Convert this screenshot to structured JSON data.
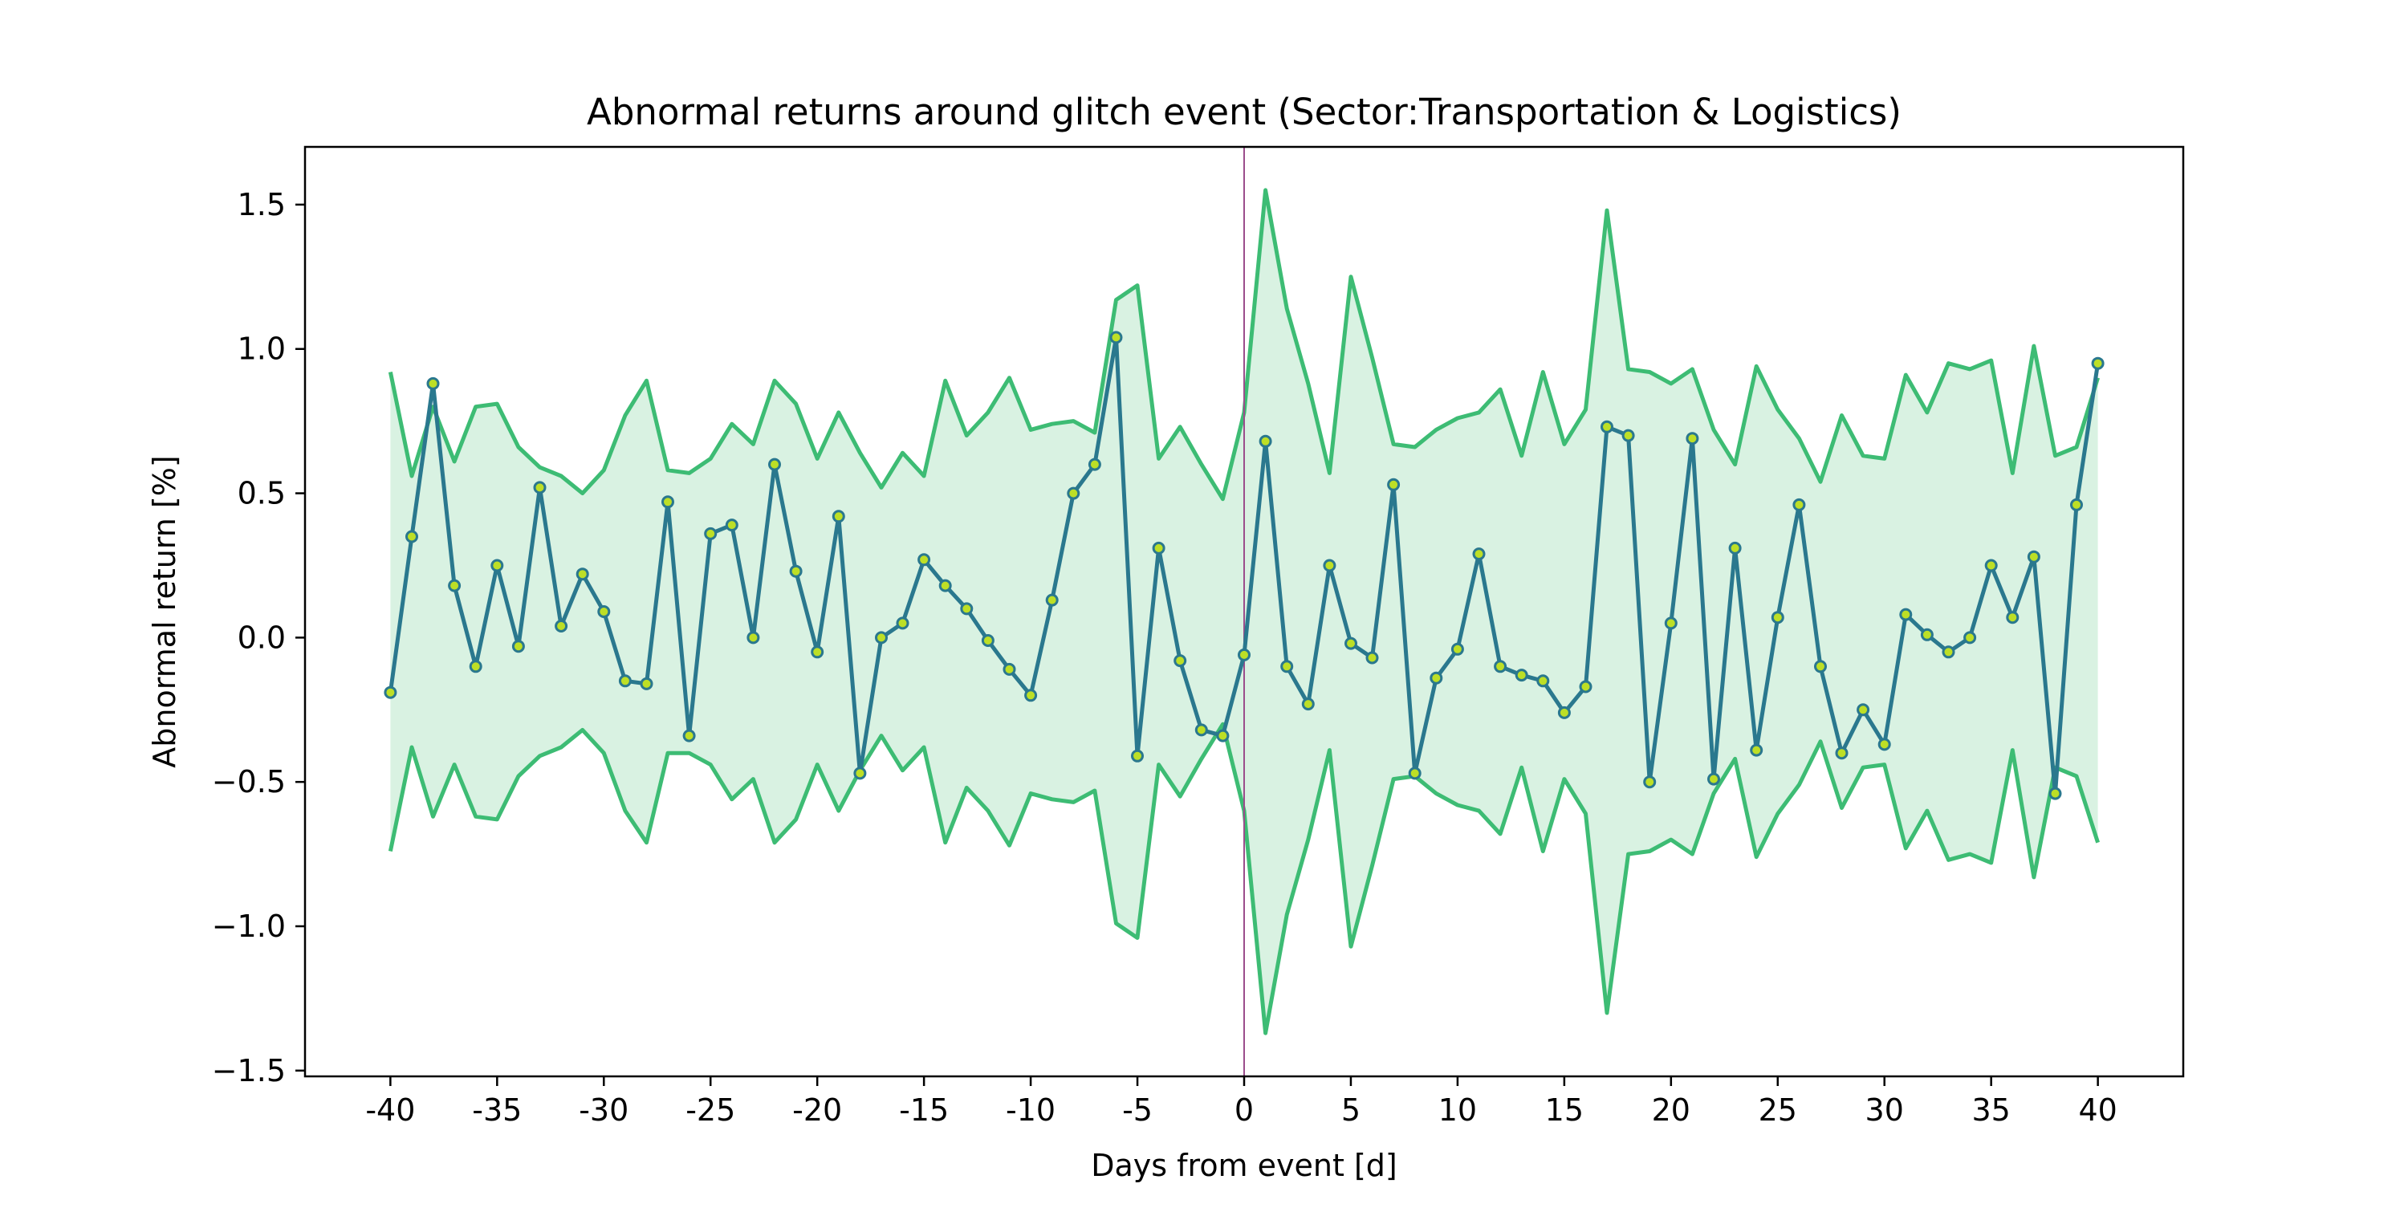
{
  "chart_data": {
    "type": "line",
    "title": "Abnormal returns around glitch event (Sector:Transportation & Logistics)",
    "xlabel": "Days from event [d]",
    "ylabel": "Abnormal return [%]",
    "xlim": [
      -44,
      44
    ],
    "ylim": [
      -1.52,
      1.7
    ],
    "xticks": [
      -40,
      -35,
      -30,
      -25,
      -20,
      -15,
      -10,
      -5,
      0,
      5,
      10,
      15,
      20,
      25,
      30,
      35,
      40
    ],
    "xtick_labels": [
      "-40",
      "-35",
      "-30",
      "-25",
      "-20",
      "-15",
      "-10",
      "-5",
      "0",
      "5",
      "10",
      "15",
      "20",
      "25",
      "30",
      "35",
      "40"
    ],
    "yticks": [
      -1.5,
      -1.0,
      -0.5,
      0.0,
      0.5,
      1.0,
      1.5
    ],
    "ytick_labels": [
      "−1.5",
      "−1.0",
      "−0.5",
      "0.0",
      "0.5",
      "1.0",
      "1.5"
    ],
    "event_day": 0,
    "grid": false,
    "colors": {
      "mean_line": "#2a788e",
      "marker_fill": "#bddf26",
      "band_line": "#3dbc74",
      "band_fill": "#d9f2e2",
      "event_line": "#9b4d8c"
    },
    "x": [
      -40,
      -39,
      -38,
      -37,
      -36,
      -35,
      -34,
      -33,
      -32,
      -31,
      -30,
      -29,
      -28,
      -27,
      -26,
      -25,
      -24,
      -23,
      -22,
      -21,
      -20,
      -19,
      -18,
      -17,
      -16,
      -15,
      -14,
      -13,
      -12,
      -11,
      -10,
      -9,
      -8,
      -7,
      -6,
      -5,
      -4,
      -3,
      -2,
      -1,
      0,
      1,
      2,
      3,
      4,
      5,
      6,
      7,
      8,
      9,
      10,
      11,
      12,
      13,
      14,
      15,
      16,
      17,
      18,
      19,
      20,
      21,
      22,
      23,
      24,
      25,
      26,
      27,
      28,
      29,
      30,
      31,
      32,
      33,
      34,
      35,
      36,
      37,
      38,
      39,
      40
    ],
    "series": [
      {
        "role": "mean",
        "values": [
          -0.19,
          0.35,
          0.88,
          0.18,
          -0.1,
          0.25,
          -0.03,
          0.52,
          0.04,
          0.22,
          0.09,
          -0.15,
          -0.16,
          0.47,
          -0.34,
          0.36,
          0.39,
          0.0,
          0.6,
          0.23,
          -0.05,
          0.42,
          -0.47,
          0.0,
          0.05,
          0.27,
          0.18,
          0.1,
          -0.01,
          -0.11,
          -0.2,
          0.13,
          0.5,
          0.6,
          1.04,
          -0.41,
          0.31,
          -0.08,
          -0.32,
          -0.34,
          -0.06,
          0.68,
          -0.1,
          -0.23,
          0.25,
          -0.02,
          -0.07,
          0.53,
          -0.47,
          -0.14,
          -0.04,
          0.29,
          -0.1,
          -0.13,
          -0.15,
          -0.26,
          -0.17,
          0.73,
          0.7,
          -0.5,
          0.05,
          0.69,
          -0.49,
          0.31,
          -0.39,
          0.07,
          0.46,
          -0.1,
          -0.4,
          -0.25,
          -0.37,
          0.08,
          0.01,
          -0.05,
          0.0,
          0.25,
          0.07,
          0.28,
          -0.54,
          0.46,
          0.95
        ]
      },
      {
        "role": "upper",
        "values": [
          0.92,
          0.56,
          0.8,
          0.61,
          0.8,
          0.81,
          0.66,
          0.59,
          0.56,
          0.5,
          0.58,
          0.77,
          0.89,
          0.58,
          0.57,
          0.62,
          0.74,
          0.67,
          0.89,
          0.81,
          0.62,
          0.78,
          0.64,
          0.52,
          0.64,
          0.56,
          0.89,
          0.7,
          0.78,
          0.9,
          0.72,
          0.74,
          0.75,
          0.71,
          1.17,
          1.22,
          0.62,
          0.73,
          0.6,
          0.48,
          0.78,
          1.55,
          1.14,
          0.88,
          0.57,
          1.25,
          0.97,
          0.67,
          0.66,
          0.72,
          0.76,
          0.78,
          0.86,
          0.63,
          0.92,
          0.67,
          0.79,
          1.48,
          0.93,
          0.92,
          0.88,
          0.93,
          0.72,
          0.6,
          0.94,
          0.79,
          0.69,
          0.54,
          0.77,
          0.63,
          0.62,
          0.91,
          0.78,
          0.95,
          0.93,
          0.96,
          0.57,
          1.01,
          0.63,
          0.66,
          0.9
        ]
      },
      {
        "role": "lower",
        "values": [
          -0.74,
          -0.38,
          -0.62,
          -0.44,
          -0.62,
          -0.63,
          -0.48,
          -0.41,
          -0.38,
          -0.32,
          -0.4,
          -0.6,
          -0.71,
          -0.4,
          -0.4,
          -0.44,
          -0.56,
          -0.49,
          -0.71,
          -0.63,
          -0.44,
          -0.6,
          -0.46,
          -0.34,
          -0.46,
          -0.38,
          -0.71,
          -0.52,
          -0.6,
          -0.72,
          -0.54,
          -0.56,
          -0.57,
          -0.53,
          -0.99,
          -1.04,
          -0.44,
          -0.55,
          -0.42,
          -0.3,
          -0.6,
          -1.37,
          -0.96,
          -0.7,
          -0.39,
          -1.07,
          -0.79,
          -0.49,
          -0.48,
          -0.54,
          -0.58,
          -0.6,
          -0.68,
          -0.45,
          -0.74,
          -0.49,
          -0.61,
          -1.3,
          -0.75,
          -0.74,
          -0.7,
          -0.75,
          -0.54,
          -0.42,
          -0.76,
          -0.61,
          -0.51,
          -0.36,
          -0.59,
          -0.45,
          -0.44,
          -0.73,
          -0.6,
          -0.77,
          -0.75,
          -0.78,
          -0.39,
          -0.83,
          -0.45,
          -0.48,
          -0.71
        ]
      }
    ]
  }
}
